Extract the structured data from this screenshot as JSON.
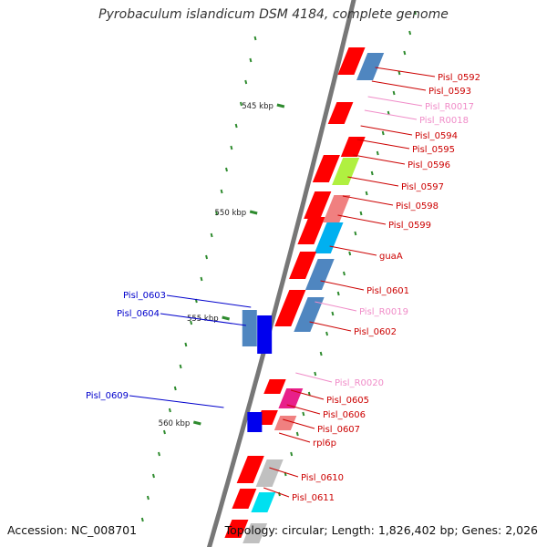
{
  "title": "Pyrobaculum islandicum DSM 4184, complete genome",
  "accession": "Accession: NC_008701",
  "topology": "Topology: circular; Length: 1,826,402 bp; Genes: 2,026",
  "colors": {
    "backbone": "#777777",
    "tick": "#2e8b2e",
    "label_red": "#cc0000",
    "label_pink": "#f08cc8",
    "label_blue": "#0000cc"
  },
  "scale_labels": [
    "545 kbp",
    "550 kbp",
    "555 kbp",
    "560 kbp"
  ],
  "gene_labels": [
    {
      "text": "Pisl_0592",
      "kind": "red"
    },
    {
      "text": "Pisl_0593",
      "kind": "red"
    },
    {
      "text": "Pisl_R0017",
      "kind": "pink"
    },
    {
      "text": "Pisl_R0018",
      "kind": "pink"
    },
    {
      "text": "Pisl_0594",
      "kind": "red"
    },
    {
      "text": "Pisl_0595",
      "kind": "red"
    },
    {
      "text": "Pisl_0596",
      "kind": "red"
    },
    {
      "text": "Pisl_0597",
      "kind": "red"
    },
    {
      "text": "Pisl_0598",
      "kind": "red"
    },
    {
      "text": "Pisl_0599",
      "kind": "red"
    },
    {
      "text": "guaA",
      "kind": "red"
    },
    {
      "text": "Pisl_0601",
      "kind": "red"
    },
    {
      "text": "Pisl_R0019",
      "kind": "pink"
    },
    {
      "text": "Pisl_0602",
      "kind": "red"
    },
    {
      "text": "Pisl_R0020",
      "kind": "pink"
    },
    {
      "text": "Pisl_0605",
      "kind": "red"
    },
    {
      "text": "Pisl_0606",
      "kind": "red"
    },
    {
      "text": "Pisl_0607",
      "kind": "red"
    },
    {
      "text": "rpl6p",
      "kind": "red"
    },
    {
      "text": "Pisl_0610",
      "kind": "red"
    },
    {
      "text": "Pisl_0611",
      "kind": "red"
    },
    {
      "text": "Pisl_0603",
      "kind": "blue"
    },
    {
      "text": "Pisl_0604",
      "kind": "blue"
    },
    {
      "text": "Pisl_0609",
      "kind": "blue"
    }
  ]
}
